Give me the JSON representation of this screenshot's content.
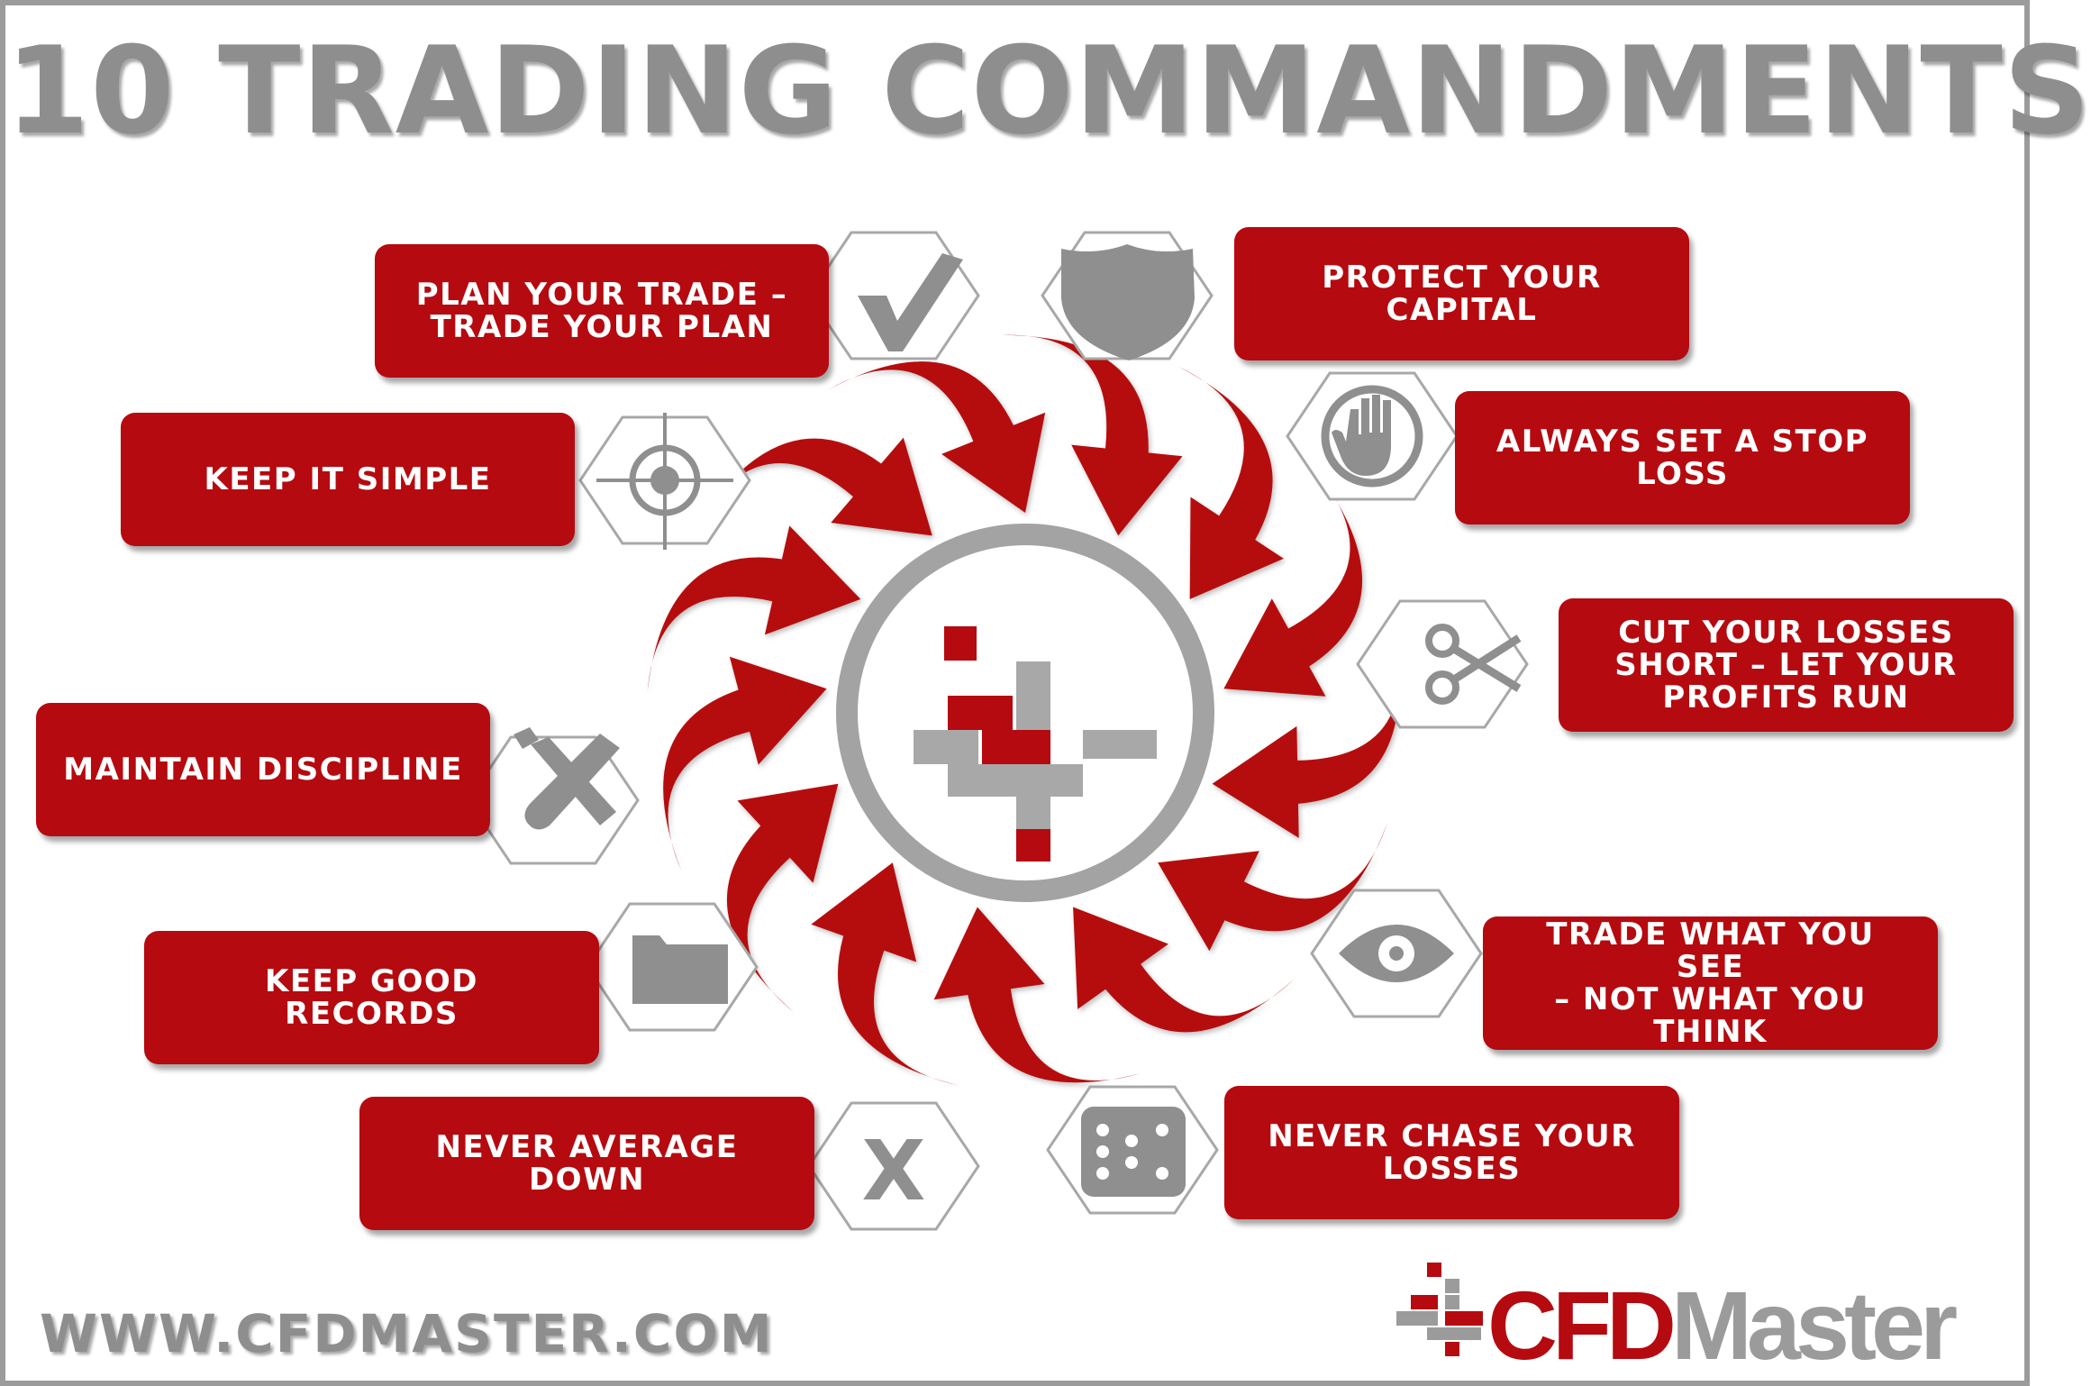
{
  "title": "10 TRADING COMMANDMENTS",
  "colors": {
    "accent_red": "#b50a0f",
    "gray": "#9b9b9b"
  },
  "commandments": [
    {
      "id": "plan",
      "line1": "PLAN YOUR TRADE –",
      "line2": "TRADE YOUR PLAN",
      "icon": "checkmark-icon"
    },
    {
      "id": "protect",
      "line1": "PROTECT YOUR",
      "line2": "CAPITAL",
      "icon": "shield-icon"
    },
    {
      "id": "simple",
      "line1": "KEEP IT SIMPLE",
      "line2": "",
      "icon": "crosshair-icon"
    },
    {
      "id": "stop",
      "line1": "ALWAYS SET A STOP",
      "line2": "LOSS",
      "icon": "stop-hand-icon"
    },
    {
      "id": "cut",
      "line1": "CUT YOUR LOSSES",
      "line2": "SHORT – LET YOUR",
      "line3": "PROFITS RUN",
      "icon": "scissors-icon"
    },
    {
      "id": "discipline",
      "line1": "MAINTAIN DISCIPLINE",
      "line2": "",
      "icon": "tools-icon"
    },
    {
      "id": "see",
      "line1": "TRADE WHAT YOU SEE",
      "line2": "– NOT WHAT YOU",
      "line3": "THINK",
      "icon": "eye-icon"
    },
    {
      "id": "records",
      "line1": "KEEP GOOD",
      "line2": "RECORDS",
      "icon": "folder-icon"
    },
    {
      "id": "average",
      "line1": "NEVER AVERAGE",
      "line2": "DOWN",
      "icon": "x-letter-icon"
    },
    {
      "id": "chase",
      "line1": "NEVER CHASE YOUR",
      "line2": "LOSSES",
      "icon": "dice-icon"
    }
  ],
  "x_icon_letter": "X",
  "footer": {
    "url": "WWW.CFDMASTER.COM",
    "brand_part1": "CFD",
    "brand_part2": "Master"
  }
}
